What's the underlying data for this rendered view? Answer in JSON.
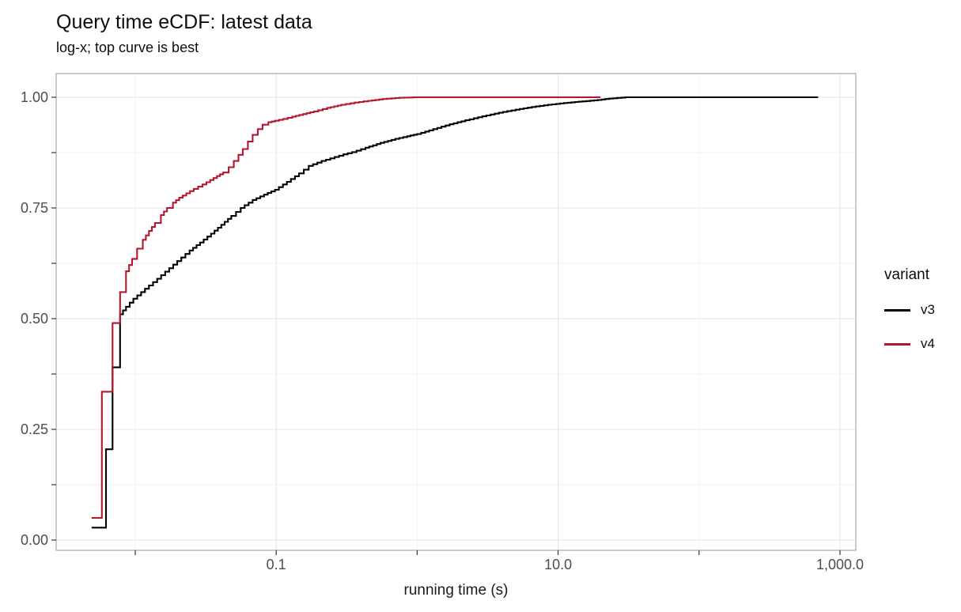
{
  "chart": {
    "title": "Query time eCDF: latest data",
    "subtitle": "log-x; top curve is best",
    "xlabel": "running time (s)"
  },
  "legend": {
    "title": "variant",
    "items": [
      {
        "label": "v3",
        "color": "#000000"
      },
      {
        "label": "v4",
        "color": "#B2182B"
      }
    ]
  },
  "chart_data": {
    "type": "line",
    "style": "ecdf_step",
    "title": "Query time eCDF: latest data",
    "subtitle": "log-x; top curve is best",
    "xlabel": "running time (s)",
    "ylabel": "",
    "x_scale": "log10",
    "xlim": [
      0.0028,
      1300
    ],
    "ylim": [
      0,
      1
    ],
    "grid": true,
    "legend_position": "right",
    "legend_title": "variant",
    "x_ticks": [
      {
        "value": 0.01,
        "label": ""
      },
      {
        "value": 0.1,
        "label": "0.1"
      },
      {
        "value": 1,
        "label": ""
      },
      {
        "value": 10,
        "label": "10.0"
      },
      {
        "value": 100,
        "label": ""
      },
      {
        "value": 1000,
        "label": "1,000.0"
      }
    ],
    "y_ticks_major": [
      {
        "value": 0,
        "label": "0.00"
      },
      {
        "value": 0.25,
        "label": "0.25"
      },
      {
        "value": 0.5,
        "label": "0.50"
      },
      {
        "value": 0.75,
        "label": "0.75"
      },
      {
        "value": 1,
        "label": "1.00"
      }
    ],
    "y_ticks_minor": [
      0.125,
      0.375,
      0.625,
      0.875
    ],
    "series": [
      {
        "name": "v3",
        "color": "#000000",
        "points": [
          [
            0.0049,
            0.028
          ],
          [
            0.0062,
            0.205
          ],
          [
            0.0069,
            0.39
          ],
          [
            0.0078,
            0.51
          ],
          [
            0.0086,
            0.527
          ],
          [
            0.0097,
            0.545
          ],
          [
            0.011,
            0.56
          ],
          [
            0.0125,
            0.575
          ],
          [
            0.0143,
            0.59
          ],
          [
            0.0163,
            0.606
          ],
          [
            0.0186,
            0.622
          ],
          [
            0.0212,
            0.638
          ],
          [
            0.0243,
            0.654
          ],
          [
            0.0288,
            0.672
          ],
          [
            0.0345,
            0.692
          ],
          [
            0.0408,
            0.712
          ],
          [
            0.048,
            0.732
          ],
          [
            0.056,
            0.75
          ],
          [
            0.068,
            0.768
          ],
          [
            0.082,
            0.78
          ],
          [
            0.098,
            0.791
          ],
          [
            0.119,
            0.809
          ],
          [
            0.145,
            0.828
          ],
          [
            0.17,
            0.845
          ],
          [
            0.21,
            0.856
          ],
          [
            0.26,
            0.865
          ],
          [
            0.3,
            0.871
          ],
          [
            0.345,
            0.876
          ],
          [
            0.43,
            0.886
          ],
          [
            0.55,
            0.897
          ],
          [
            0.7,
            0.906
          ],
          [
            0.85,
            0.912
          ],
          [
            1.0,
            0.917
          ],
          [
            1.3,
            0.928
          ],
          [
            1.7,
            0.939
          ],
          [
            2.2,
            0.948
          ],
          [
            2.9,
            0.957
          ],
          [
            3.8,
            0.965
          ],
          [
            5.0,
            0.972
          ],
          [
            6.5,
            0.978
          ],
          [
            8.5,
            0.983
          ],
          [
            11,
            0.987
          ],
          [
            14,
            0.99
          ],
          [
            18,
            0.993
          ],
          [
            23,
            0.997
          ],
          [
            30,
            1.0
          ],
          [
            700,
            1.0
          ]
        ]
      },
      {
        "name": "v4",
        "color": "#B2182B",
        "points": [
          [
            0.0049,
            0.05
          ],
          [
            0.0058,
            0.335
          ],
          [
            0.0069,
            0.49
          ],
          [
            0.0078,
            0.56
          ],
          [
            0.0086,
            0.607
          ],
          [
            0.0095,
            0.635
          ],
          [
            0.0103,
            0.658
          ],
          [
            0.0113,
            0.678
          ],
          [
            0.0125,
            0.698
          ],
          [
            0.0138,
            0.716
          ],
          [
            0.0152,
            0.734
          ],
          [
            0.0168,
            0.75
          ],
          [
            0.0185,
            0.762
          ],
          [
            0.0205,
            0.773
          ],
          [
            0.023,
            0.783
          ],
          [
            0.026,
            0.793
          ],
          [
            0.03,
            0.803
          ],
          [
            0.034,
            0.813
          ],
          [
            0.038,
            0.822
          ],
          [
            0.042,
            0.83
          ],
          [
            0.046,
            0.842
          ],
          [
            0.05,
            0.856
          ],
          [
            0.054,
            0.87
          ],
          [
            0.058,
            0.883
          ],
          [
            0.063,
            0.9
          ],
          [
            0.068,
            0.915
          ],
          [
            0.074,
            0.928
          ],
          [
            0.08,
            0.938
          ],
          [
            0.088,
            0.9435
          ],
          [
            0.098,
            0.947
          ],
          [
            0.112,
            0.951
          ],
          [
            0.13,
            0.956
          ],
          [
            0.155,
            0.962
          ],
          [
            0.185,
            0.968
          ],
          [
            0.23,
            0.976
          ],
          [
            0.29,
            0.983
          ],
          [
            0.36,
            0.988
          ],
          [
            0.45,
            0.992
          ],
          [
            0.57,
            0.996
          ],
          [
            0.75,
            0.999
          ],
          [
            1.0,
            1.0
          ],
          [
            20,
            1.0
          ]
        ]
      }
    ]
  }
}
